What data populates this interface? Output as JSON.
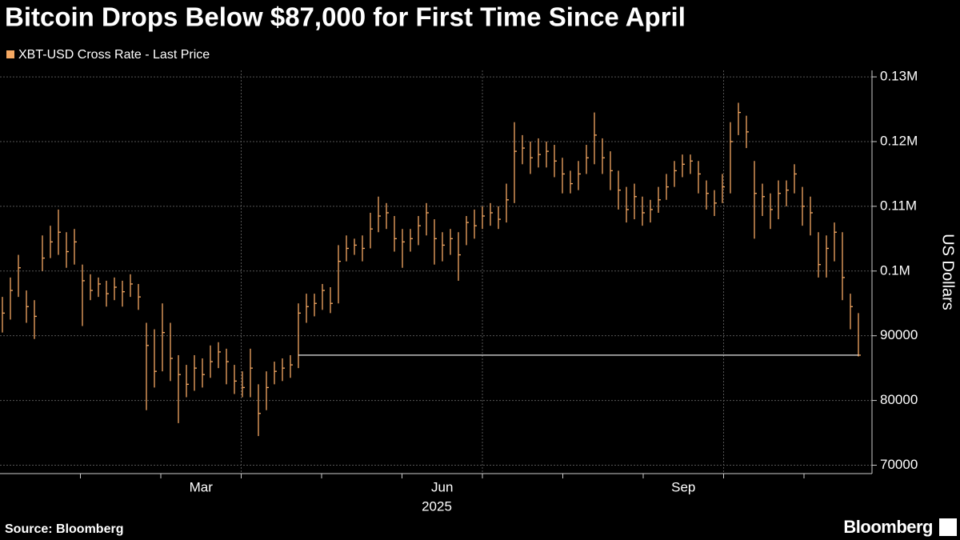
{
  "chart_data": {
    "type": "hlc",
    "title": "Bitcoin Drops Below $87,000 for First Time Since April",
    "y_label": "US Dollars",
    "source": "Source: Bloomberg",
    "brand": "Bloomberg",
    "year_label": "2025",
    "categories": [
      null,
      null,
      "Mar",
      null,
      null,
      "Jun",
      null,
      null,
      "Sep",
      null,
      null
    ],
    "series": [
      {
        "name": "XBT-USD Cross Rate - Last Price",
        "color": "#f5a862",
        "high": [
          96000,
          99000,
          102500,
          97000,
          95500,
          105500,
          107000,
          109500,
          106000,
          106500,
          101000,
          99500,
          99000,
          98500,
          99000,
          98500,
          99500,
          98000,
          92000,
          91000,
          95000,
          92000,
          87000,
          85500,
          87000,
          86500,
          88500,
          89000,
          88000,
          85500,
          84500,
          88000,
          82500,
          84500,
          86000,
          86500,
          87000,
          95000,
          96500,
          96500,
          98000,
          97500,
          104000,
          105500,
          105000,
          105500,
          109000,
          111500,
          110500,
          108500,
          106500,
          106500,
          108500,
          110500,
          108000,
          106000,
          106500,
          106000,
          108500,
          109500,
          110000,
          110500,
          110000,
          113500,
          123000,
          121000,
          120000,
          120500,
          120000,
          119500,
          117500,
          115500,
          117000,
          119500,
          124500,
          120500,
          118500,
          115500,
          113000,
          113500,
          111500,
          111000,
          113000,
          115000,
          117000,
          118000,
          118000,
          117000,
          114000,
          112500,
          115000,
          123000,
          126000,
          124000,
          117000,
          113500,
          112000,
          114000,
          114000,
          116500,
          113000,
          111500,
          106000,
          105500,
          107500,
          106000,
          96500,
          93500
        ],
        "low": [
          90500,
          92500,
          96000,
          92000,
          89500,
          100000,
          102000,
          102500,
          100500,
          101000,
          91500,
          95500,
          96000,
          94500,
          95500,
          94500,
          96000,
          94000,
          78500,
          82000,
          84500,
          83000,
          76500,
          80500,
          81500,
          82000,
          83500,
          85000,
          82500,
          81000,
          80500,
          80500,
          74500,
          78500,
          82500,
          83000,
          83500,
          85000,
          92000,
          93000,
          94000,
          93500,
          95000,
          101500,
          102500,
          101500,
          103500,
          106000,
          106500,
          103000,
          100500,
          103000,
          104000,
          105500,
          101000,
          101500,
          102500,
          98500,
          104000,
          105000,
          106500,
          107000,
          106500,
          107500,
          110500,
          116500,
          115000,
          116000,
          116000,
          114500,
          112000,
          112000,
          112500,
          115000,
          116500,
          115000,
          112500,
          109500,
          107500,
          108000,
          107000,
          107500,
          109000,
          111000,
          113000,
          114500,
          115000,
          112000,
          109500,
          108500,
          110500,
          112000,
          121000,
          119000,
          105000,
          108500,
          106500,
          108000,
          110000,
          112000,
          107000,
          105500,
          99000,
          99000,
          101500,
          95500,
          91000,
          86800
        ],
        "close": [
          93500,
          97000,
          100500,
          94500,
          93000,
          102000,
          104500,
          106000,
          103000,
          104500,
          98500,
          97000,
          98000,
          96500,
          97500,
          96800,
          98000,
          96000,
          88500,
          84500,
          90500,
          86500,
          84000,
          82500,
          85000,
          84000,
          86000,
          87500,
          86000,
          83000,
          82000,
          85000,
          78000,
          82000,
          84500,
          85000,
          85500,
          93500,
          94500,
          95000,
          97000,
          95000,
          101500,
          103500,
          104000,
          103500,
          106500,
          108500,
          109000,
          105000,
          104500,
          105000,
          107000,
          109000,
          105000,
          104000,
          105000,
          102500,
          107500,
          107000,
          108500,
          109000,
          108000,
          111000,
          118500,
          119000,
          117500,
          118000,
          118500,
          117000,
          115000,
          113500,
          115000,
          117500,
          121000,
          117500,
          115500,
          112500,
          109500,
          111500,
          109000,
          109500,
          111000,
          113000,
          115500,
          116500,
          117000,
          115000,
          112000,
          110500,
          113000,
          120000,
          124500,
          121500,
          112000,
          111500,
          109500,
          112000,
          112500,
          115000,
          110000,
          109000,
          101000,
          103500,
          106000,
          99000,
          94500,
          87000
        ]
      }
    ],
    "reference_line": 87000,
    "ylim": [
      68700,
      131000
    ],
    "yticks": [
      70000,
      80000,
      90000,
      {
        "value": 100000,
        "label": "0.1M"
      },
      {
        "value": 110000,
        "label": "0.11M"
      },
      {
        "value": 120000,
        "label": "0.12M"
      },
      {
        "value": 130000,
        "label": "0.13M"
      }
    ],
    "grid": true
  }
}
